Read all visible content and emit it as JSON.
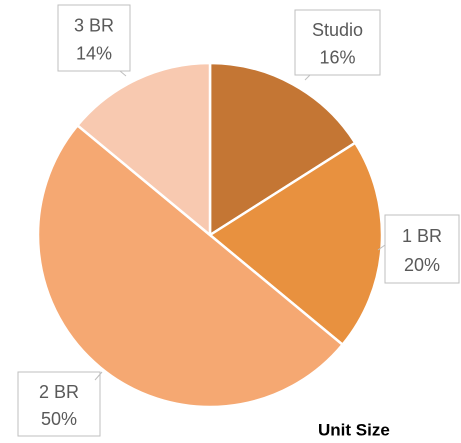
{
  "chart_data": {
    "type": "pie",
    "title": "Unit Size",
    "categories": [
      "Studio",
      "1 BR",
      "2 BR",
      "3 BR"
    ],
    "values": [
      16,
      20,
      50,
      14
    ],
    "value_labels": [
      "16%",
      "20%",
      "50%",
      "14%"
    ],
    "colors": [
      "#c47634",
      "#e8913f",
      "#f5a872",
      "#f8c9b0"
    ]
  }
}
